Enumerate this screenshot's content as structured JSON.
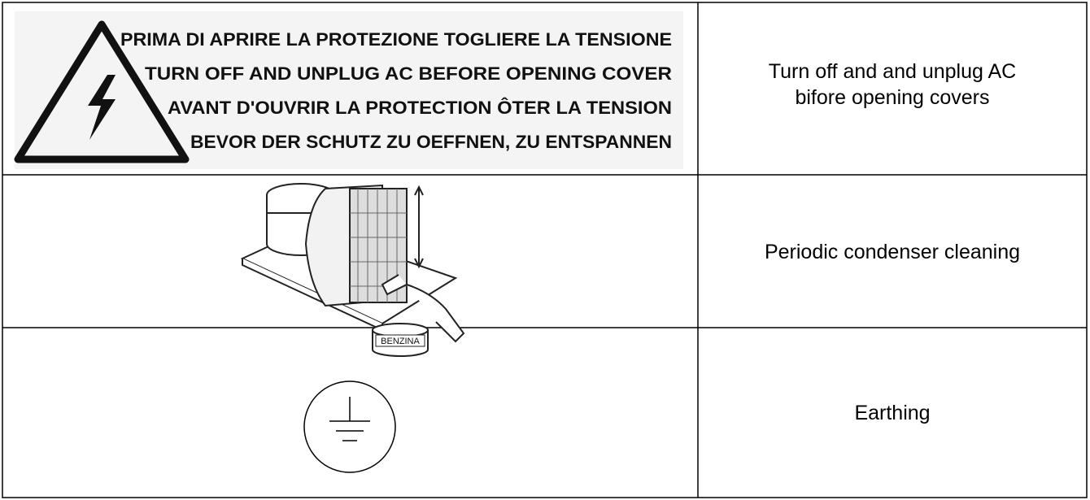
{
  "table": {
    "rows": [
      {
        "sign": {
          "lines": [
            "PRIMA DI APRIRE LA PROTEZIONE TOGLIERE LA TENSIONE",
            "TURN OFF AND UNPLUG AC BEFORE OPENING COVER",
            "AVANT D'OUVRIR LA PROTECTION ÔTER LA TENSION",
            "BEVOR DER SCHUTZ ZU OEFFNEN, ZU ENTSPANNEN"
          ]
        },
        "description": [
          "Turn off and and unplug AC",
          "bifore opening covers"
        ]
      },
      {
        "sign": {
          "label": "BENZINA"
        },
        "description": [
          "Periodic condenser cleaning"
        ]
      },
      {
        "description": [
          "Earthing"
        ]
      }
    ]
  }
}
